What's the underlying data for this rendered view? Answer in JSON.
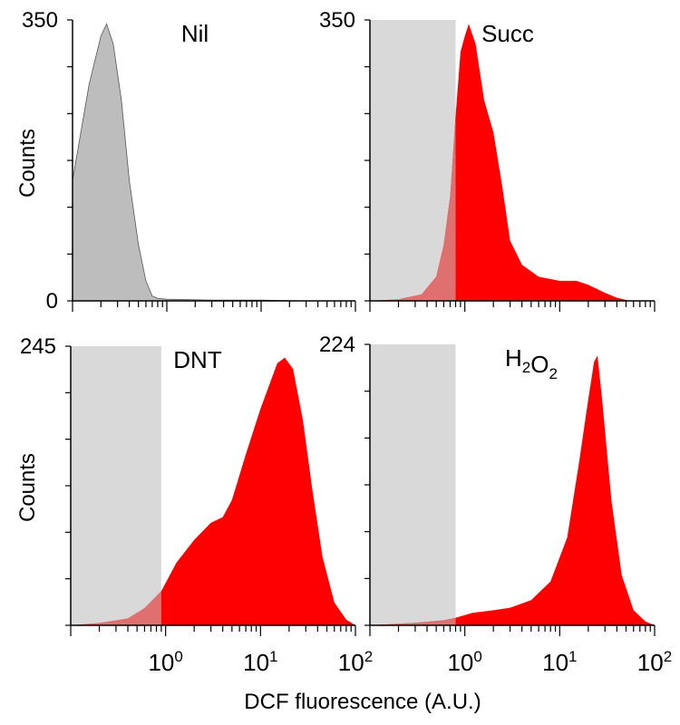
{
  "figure": {
    "xlabel": "DCF fluorescence (A.U.)",
    "ylabel": "Counts"
  },
  "colors": {
    "control": "#bdbdbd",
    "treated": "#ff0000",
    "gate": "#d9d9d9",
    "overlap": "#e07070"
  },
  "chart_data": [
    {
      "type": "area",
      "panel": "top-left",
      "title": "Nil",
      "x_scale": "log",
      "xlim": [
        0.1,
        100
      ],
      "ylim": [
        0,
        350
      ],
      "y_tick_labels": [
        "350",
        "0"
      ],
      "ylabel": "Counts",
      "gate_max_x": null,
      "series": [
        {
          "color": "#bdbdbd",
          "points": [
            [
              0.1,
              150
            ],
            [
              0.15,
              270
            ],
            [
              0.2,
              330
            ],
            [
              0.23,
              345
            ],
            [
              0.27,
              320
            ],
            [
              0.33,
              250
            ],
            [
              0.4,
              150
            ],
            [
              0.5,
              70
            ],
            [
              0.6,
              25
            ],
            [
              0.7,
              6
            ],
            [
              0.8,
              3
            ],
            [
              1,
              2
            ],
            [
              3,
              1
            ],
            [
              10,
              1
            ],
            [
              30,
              0
            ],
            [
              100,
              0
            ]
          ]
        }
      ]
    },
    {
      "type": "area",
      "panel": "top-right",
      "title": "Succ",
      "x_scale": "log",
      "xlim": [
        0.1,
        100
      ],
      "ylim": [
        0,
        350
      ],
      "y_tick_labels": [
        "350"
      ],
      "ylabel": "",
      "gate_max_x": 0.8,
      "series": [
        {
          "color": "#ff0000",
          "points": [
            [
              0.1,
              0
            ],
            [
              0.2,
              2
            ],
            [
              0.35,
              8
            ],
            [
              0.5,
              30
            ],
            [
              0.6,
              70
            ],
            [
              0.7,
              130
            ],
            [
              0.8,
              230
            ],
            [
              0.9,
              310
            ],
            [
              1,
              330
            ],
            [
              1.1,
              345
            ],
            [
              1.3,
              320
            ],
            [
              1.6,
              250
            ],
            [
              2,
              210
            ],
            [
              2.5,
              140
            ],
            [
              3,
              75
            ],
            [
              4,
              45
            ],
            [
              6,
              30
            ],
            [
              10,
              25
            ],
            [
              15,
              25
            ],
            [
              20,
              20
            ],
            [
              30,
              10
            ],
            [
              40,
              4
            ],
            [
              55,
              0
            ],
            [
              100,
              0
            ]
          ]
        }
      ]
    },
    {
      "type": "area",
      "panel": "bottom-left",
      "title": "DNT",
      "x_scale": "log",
      "xlim": [
        0.1,
        100
      ],
      "ylim": [
        0,
        245
      ],
      "y_tick_labels": [
        "245"
      ],
      "ylabel": "Counts",
      "gate_max_x": 0.9,
      "x_tick_labels": [
        "10^0",
        "10^1",
        "10^2"
      ],
      "series": [
        {
          "color": "#ff0000",
          "points": [
            [
              0.1,
              0
            ],
            [
              0.2,
              2
            ],
            [
              0.4,
              6
            ],
            [
              0.6,
              15
            ],
            [
              0.9,
              30
            ],
            [
              1.3,
              55
            ],
            [
              2,
              75
            ],
            [
              3,
              90
            ],
            [
              4,
              95
            ],
            [
              5,
              110
            ],
            [
              7,
              150
            ],
            [
              10,
              190
            ],
            [
              15,
              230
            ],
            [
              18,
              235
            ],
            [
              22,
              225
            ],
            [
              28,
              180
            ],
            [
              35,
              120
            ],
            [
              45,
              60
            ],
            [
              60,
              20
            ],
            [
              80,
              5
            ],
            [
              100,
              0
            ]
          ]
        }
      ]
    },
    {
      "type": "area",
      "panel": "bottom-right",
      "title": "H2O2",
      "x_scale": "log",
      "xlim": [
        0.1,
        100
      ],
      "ylim": [
        0,
        224
      ],
      "y_tick_labels": [
        "224"
      ],
      "ylabel": "",
      "gate_max_x": 0.8,
      "x_tick_labels": [
        "10^0",
        "10^1",
        "10^2"
      ],
      "series": [
        {
          "color": "#ff0000",
          "points": [
            [
              0.1,
              0
            ],
            [
              0.3,
              2
            ],
            [
              0.6,
              4
            ],
            [
              0.8,
              6
            ],
            [
              1.2,
              10
            ],
            [
              2,
              12
            ],
            [
              3,
              14
            ],
            [
              5,
              20
            ],
            [
              8,
              35
            ],
            [
              12,
              70
            ],
            [
              16,
              130
            ],
            [
              20,
              180
            ],
            [
              23,
              210
            ],
            [
              25,
              215
            ],
            [
              28,
              180
            ],
            [
              35,
              100
            ],
            [
              45,
              40
            ],
            [
              60,
              12
            ],
            [
              80,
              3
            ],
            [
              100,
              0
            ]
          ]
        }
      ]
    }
  ]
}
